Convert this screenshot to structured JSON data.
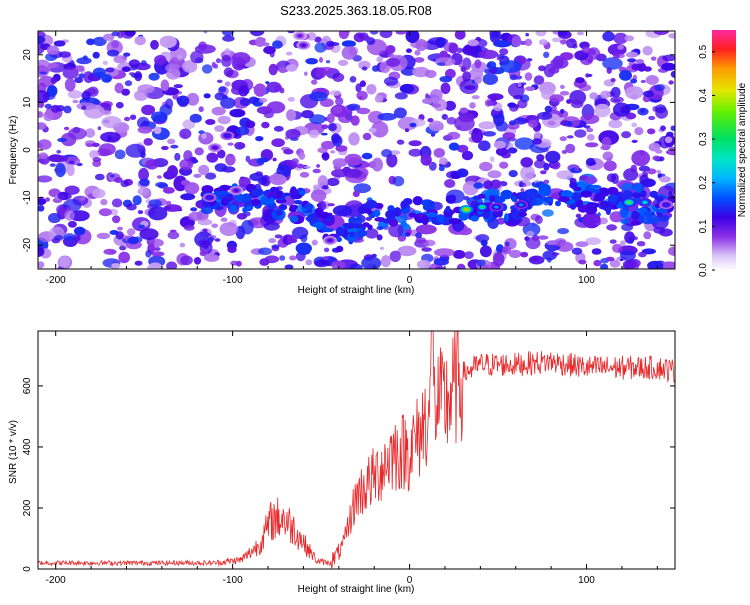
{
  "title": "S233.2025.363.18.05.R08",
  "chart_data": [
    {
      "type": "heatmap",
      "xlabel": "Height of straight line (km)",
      "ylabel": "Frequency (Hz)",
      "xlim": [
        -210,
        150
      ],
      "ylim": [
        -25,
        25
      ],
      "xticks": [
        -200,
        -100,
        0,
        100
      ],
      "yticks": [
        -20,
        -10,
        0,
        10,
        20
      ],
      "colorbar": {
        "label": "Normalized spectral amplitude",
        "range": [
          0,
          0.55
        ],
        "ticks": [
          "0.0",
          "0.1",
          "0.2",
          "0.3",
          "0.4",
          "0.5"
        ]
      },
      "signal_band": {
        "description_points": [
          [
            -110,
            -10
          ],
          [
            -60,
            -11
          ],
          [
            -40,
            -19
          ],
          [
            -20,
            -13
          ],
          [
            0,
            -13
          ],
          [
            30,
            -12.5
          ],
          [
            60,
            -11.5
          ],
          [
            90,
            -9.5
          ],
          [
            120,
            -11
          ],
          [
            150,
            -12
          ]
        ]
      },
      "hotspots": [
        {
          "x": -62,
          "y": 24,
          "v": 0.1
        },
        {
          "x": -60,
          "y": 22,
          "v": 0.12
        },
        {
          "x": -103,
          "y": 3,
          "v": 0.15
        },
        {
          "x": -110,
          "y": 0.5,
          "v": 0.12
        },
        {
          "x": -113,
          "y": -10,
          "v": 0.15
        },
        {
          "x": -98,
          "y": -8.5,
          "v": 0.12
        },
        {
          "x": -45,
          "y": -19,
          "v": 0.12
        },
        {
          "x": 32,
          "y": -12.5,
          "v": 0.45
        },
        {
          "x": 41,
          "y": -12,
          "v": 0.3
        },
        {
          "x": 49,
          "y": -12,
          "v": 0.2
        },
        {
          "x": 63,
          "y": -11.5,
          "v": 0.2
        },
        {
          "x": 124,
          "y": -11,
          "v": 0.35
        },
        {
          "x": 133,
          "y": -11,
          "v": 0.25
        },
        {
          "x": 145,
          "y": -11.5,
          "v": 0.15
        }
      ]
    },
    {
      "type": "line",
      "xlabel": "Height of straight line (km)",
      "ylabel": "SNR (10 * v/v)",
      "xlim": [
        -210,
        150
      ],
      "ylim": [
        0,
        780
      ],
      "xticks": [
        -200,
        -100,
        0,
        100
      ],
      "yticks": [
        0,
        200,
        400,
        600
      ],
      "series": [
        {
          "color": "#e8282a",
          "x": [
            -210,
            -160,
            -110,
            -95,
            -85,
            -78,
            -72,
            -65,
            -58,
            -52,
            -45,
            -38,
            -30,
            -20,
            -10,
            0,
            5,
            10,
            15,
            20,
            25,
            30,
            40,
            60,
            80,
            100,
            120,
            140,
            150
          ],
          "y": [
            20,
            20,
            20,
            30,
            80,
            160,
            170,
            130,
            70,
            25,
            20,
            70,
            240,
            300,
            380,
            390,
            430,
            510,
            540,
            540,
            590,
            640,
            670,
            670,
            680,
            660,
            660,
            660,
            650
          ]
        }
      ]
    }
  ]
}
